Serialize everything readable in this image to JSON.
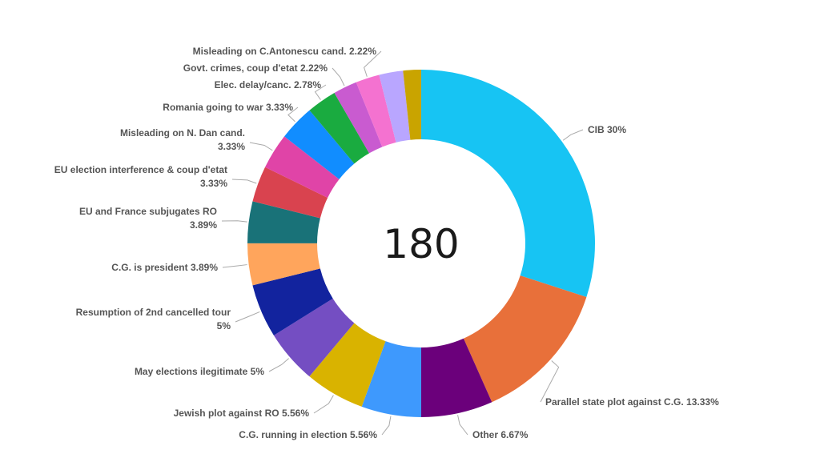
{
  "chart_data": {
    "type": "pie",
    "variant": "donut",
    "total_label": "180",
    "title": "",
    "legend": "none",
    "slices": [
      {
        "name": "CIB",
        "value_label": "30%",
        "value": 30,
        "color": "#17C4F3"
      },
      {
        "name": "Parallel state plot against C.G.",
        "value_label": "13.33%",
        "value": 13.33,
        "color": "#E8703A"
      },
      {
        "name": "Other",
        "value_label": "6.67%",
        "value": 6.67,
        "color": "#6B007B"
      },
      {
        "name": "C.G. running in election",
        "value_label": "5.56%",
        "value": 5.56,
        "color": "#3E99FD"
      },
      {
        "name": "Jewish plot against RO",
        "value_label": "5.56%",
        "value": 5.56,
        "color": "#D9B300"
      },
      {
        "name": "May elections ilegitimate",
        "value_label": "5%",
        "value": 5,
        "color": "#744EC2"
      },
      {
        "name": "Resumption of 2nd cancelled tour",
        "value_label": "5%",
        "value": 5,
        "color": "#12239E"
      },
      {
        "name": "C.G. is president",
        "value_label": "3.89%",
        "value": 3.89,
        "color": "#FFA55C"
      },
      {
        "name": "EU and France subjugates RO",
        "value_label": "3.89%",
        "value": 3.89,
        "color": "#197278"
      },
      {
        "name": "EU election interference & coup d'etat",
        "value_label": "3.33%",
        "value": 3.33,
        "color": "#D9434F"
      },
      {
        "name": "Misleading on N. Dan cand.",
        "value_label": "3.33%",
        "value": 3.33,
        "color": "#E044A7"
      },
      {
        "name": "Romania going to war",
        "value_label": "3.33%",
        "value": 3.33,
        "color": "#118DFF"
      },
      {
        "name": "Elec. delay/canc.",
        "value_label": "2.78%",
        "value": 2.78,
        "color": "#1AAB40"
      },
      {
        "name": "Govt. crimes, coup d'etat",
        "value_label": "2.22%",
        "value": 2.22,
        "color": "#C95BD0"
      },
      {
        "name": "Misleading on C.Antonescu cand.",
        "value_label": "2.22%",
        "value": 2.22,
        "color": "#F472D0"
      },
      {
        "name": "",
        "value_label": "",
        "value": 2.22,
        "color": "#B9A6FF"
      },
      {
        "name": "",
        "value_label": "",
        "value": 1.67,
        "color": "#C9A400"
      }
    ]
  }
}
